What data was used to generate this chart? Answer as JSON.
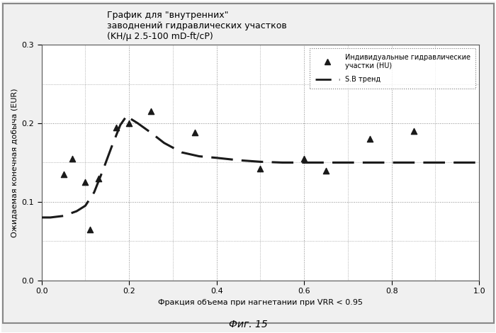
{
  "title_line1": "График для \"внутренних\"",
  "title_line2": "заводнений гидравлических участков",
  "title_line3": "(KH/μ 2.5-100 mD-ft/cP)",
  "xlabel": "Фракция объема при нагнетании при VRR < 0.95",
  "ylabel": "Ожидаемая конечная добыча (EUR)",
  "figcaption": "Фиг. 15",
  "xlim": [
    0.0,
    1.0
  ],
  "ylim": [
    0.0,
    0.3
  ],
  "xticks": [
    0.0,
    0.2,
    0.4,
    0.6,
    0.8,
    1.0
  ],
  "yticks": [
    0.0,
    0.1,
    0.2,
    0.3
  ],
  "scatter_x": [
    0.05,
    0.07,
    0.1,
    0.11,
    0.13,
    0.17,
    0.2,
    0.25,
    0.35,
    0.5,
    0.6,
    0.65,
    0.75,
    0.85
  ],
  "scatter_y": [
    0.135,
    0.155,
    0.125,
    0.065,
    0.13,
    0.195,
    0.2,
    0.215,
    0.188,
    0.142,
    0.155,
    0.14,
    0.18,
    0.19
  ],
  "trend_x": [
    0.0,
    0.02,
    0.05,
    0.08,
    0.1,
    0.12,
    0.14,
    0.16,
    0.18,
    0.195,
    0.2,
    0.22,
    0.25,
    0.28,
    0.32,
    0.36,
    0.4,
    0.45,
    0.5,
    0.55,
    0.6,
    0.65,
    0.7,
    0.75,
    0.8,
    0.85,
    0.9,
    0.95,
    1.0
  ],
  "trend_y": [
    0.08,
    0.08,
    0.082,
    0.088,
    0.095,
    0.112,
    0.14,
    0.17,
    0.198,
    0.21,
    0.207,
    0.2,
    0.188,
    0.175,
    0.163,
    0.158,
    0.156,
    0.153,
    0.151,
    0.15,
    0.15,
    0.15,
    0.15,
    0.15,
    0.15,
    0.15,
    0.15,
    0.15,
    0.15
  ],
  "legend_label_scatter": "Индивидуальные гидравлические\nучастки (HU)",
  "legend_label_trend": "S.B тренд",
  "marker_color": "#1a1a1a",
  "trend_color": "#1a1a1a",
  "bg_color": "#f0f0f0",
  "plot_bg_color": "#ffffff",
  "grid_color": "#888888",
  "border_color": "#555555",
  "outer_border_color": "#888888",
  "title_fontsize": 9,
  "axis_label_fontsize": 8,
  "tick_fontsize": 8,
  "legend_fontsize": 7,
  "caption_fontsize": 10
}
